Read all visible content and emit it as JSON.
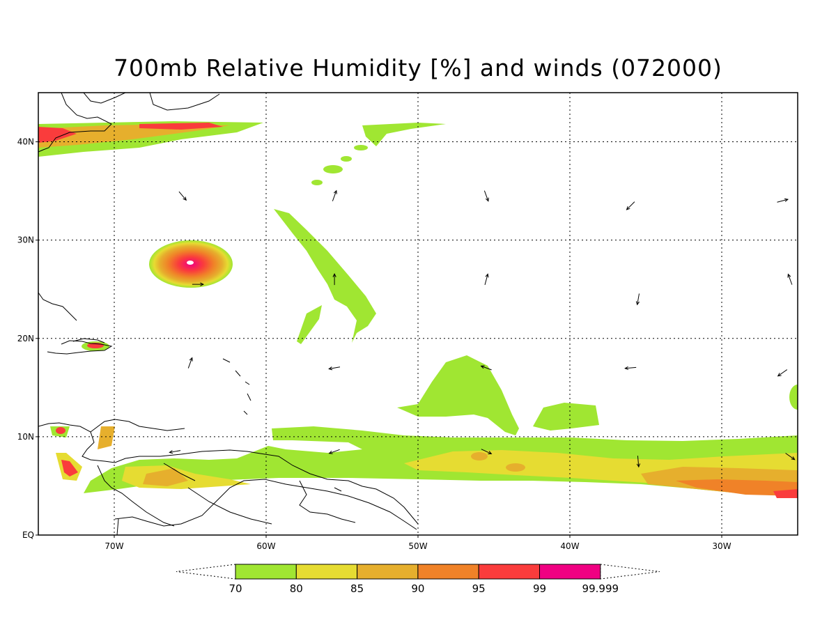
{
  "title": "700mb Relative Humidity [%] and winds (072000)",
  "map": {
    "lon_range": [
      -75,
      -25
    ],
    "lat_range": [
      0,
      45
    ],
    "grid": "dotted",
    "lat_ticks": [
      {
        "lat": 0,
        "label": "EQ"
      },
      {
        "lat": 10,
        "label": "10N"
      },
      {
        "lat": 20,
        "label": "20N"
      },
      {
        "lat": 30,
        "label": "30N"
      },
      {
        "lat": 40,
        "label": "40N"
      }
    ],
    "lon_ticks": [
      {
        "lon": -70,
        "label": "70W"
      },
      {
        "lon": -60,
        "label": "60W"
      },
      {
        "lon": -50,
        "label": "50W"
      },
      {
        "lon": -40,
        "label": "40W"
      },
      {
        "lon": -30,
        "label": "30W"
      }
    ],
    "feature": "Hurricane humidity core near 28N 65W"
  },
  "colorbar": {
    "bounds": [
      "70",
      "80",
      "85",
      "90",
      "95",
      "99",
      "99.999"
    ],
    "colors": [
      "#a0e632",
      "#e6dc32",
      "#e6af2d",
      "#f08228",
      "#fa3c3c",
      "#f00082"
    ]
  },
  "winds": [
    {
      "lon": -65.5,
      "lat": 34.5,
      "dir": 140
    },
    {
      "lon": -55.5,
      "lat": 34.5,
      "dir": 20
    },
    {
      "lon": -45.5,
      "lat": 34.5,
      "dir": 160
    },
    {
      "lon": -36,
      "lat": 33.5,
      "dir": 225
    },
    {
      "lon": -26,
      "lat": 34,
      "dir": 75
    },
    {
      "lon": -64.5,
      "lat": 25.5,
      "dir": 90
    },
    {
      "lon": -55.5,
      "lat": 26,
      "dir": 0
    },
    {
      "lon": -45.5,
      "lat": 26,
      "dir": 15
    },
    {
      "lon": -35.5,
      "lat": 24,
      "dir": 190
    },
    {
      "lon": -25.5,
      "lat": 26,
      "dir": 340
    },
    {
      "lon": -65,
      "lat": 17.5,
      "dir": 20
    },
    {
      "lon": -55.5,
      "lat": 17,
      "dir": 260
    },
    {
      "lon": -45.5,
      "lat": 17,
      "dir": 290
    },
    {
      "lon": -36,
      "lat": 17,
      "dir": 265
    },
    {
      "lon": -26,
      "lat": 16.5,
      "dir": 235
    },
    {
      "lon": -66,
      "lat": 8.5,
      "dir": 260
    },
    {
      "lon": -55.5,
      "lat": 8.5,
      "dir": 250
    },
    {
      "lon": -45.5,
      "lat": 8.5,
      "dir": 115
    },
    {
      "lon": -35.5,
      "lat": 7.5,
      "dir": 175
    },
    {
      "lon": -25.5,
      "lat": 8,
      "dir": 125
    }
  ]
}
